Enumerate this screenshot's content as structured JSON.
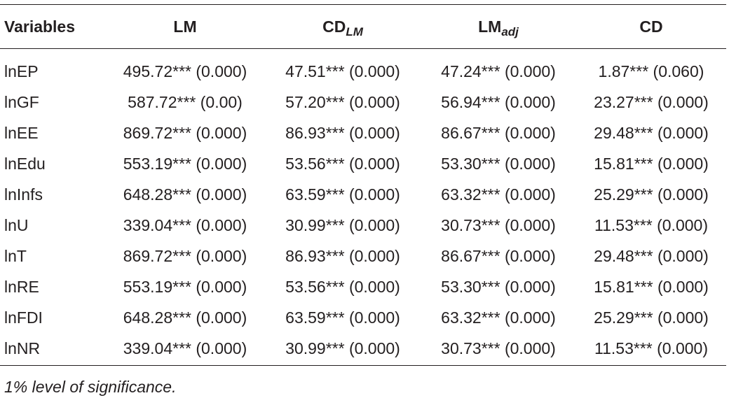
{
  "table": {
    "headers": [
      {
        "main": "Variables",
        "sub": ""
      },
      {
        "main": "LM",
        "sub": ""
      },
      {
        "main": "CD",
        "sub": "LM"
      },
      {
        "main": "LM",
        "sub": "adj"
      },
      {
        "main": "CD",
        "sub": ""
      }
    ],
    "rows": [
      {
        "var": "lnEP",
        "lm": "495.72*** (0.000)",
        "cdlm": "47.51*** (0.000)",
        "lmadj": "47.24*** (0.000)",
        "cd": "1.87*** (0.060)"
      },
      {
        "var": "lnGF",
        "lm": "587.72*** (0.00)",
        "cdlm": "57.20*** (0.000)",
        "lmadj": "56.94*** (0.000)",
        "cd": "23.27*** (0.000)"
      },
      {
        "var": "lnEE",
        "lm": "869.72*** (0.000)",
        "cdlm": "86.93*** (0.000)",
        "lmadj": "86.67*** (0.000)",
        "cd": "29.48*** (0.000)"
      },
      {
        "var": "lnEdu",
        "lm": "553.19*** (0.000)",
        "cdlm": "53.56*** (0.000)",
        "lmadj": "53.30*** (0.000)",
        "cd": "15.81*** (0.000)"
      },
      {
        "var": "lnInfs",
        "lm": "648.28*** (0.000)",
        "cdlm": "63.59*** (0.000)",
        "lmadj": "63.32*** (0.000)",
        "cd": "25.29*** (0.000)"
      },
      {
        "var": "lnU",
        "lm": "339.04*** (0.000)",
        "cdlm": "30.99*** (0.000)",
        "lmadj": "30.73*** (0.000)",
        "cd": "11.53*** (0.000)"
      },
      {
        "var": "lnT",
        "lm": "869.72*** (0.000)",
        "cdlm": "86.93*** (0.000)",
        "lmadj": "86.67*** (0.000)",
        "cd": "29.48*** (0.000)"
      },
      {
        "var": "lnRE",
        "lm": "553.19*** (0.000)",
        "cdlm": "53.56*** (0.000)",
        "lmadj": "53.30*** (0.000)",
        "cd": "15.81*** (0.000)"
      },
      {
        "var": "lnFDI",
        "lm": "648.28*** (0.000)",
        "cdlm": "63.59*** (0.000)",
        "lmadj": "63.32*** (0.000)",
        "cd": "25.29*** (0.000)"
      },
      {
        "var": "lnNR",
        "lm": "339.04*** (0.000)",
        "cdlm": "30.99*** (0.000)",
        "lmadj": "30.73*** (0.000)",
        "cd": "11.53*** (0.000)"
      }
    ]
  },
  "note": "1% level of significance."
}
